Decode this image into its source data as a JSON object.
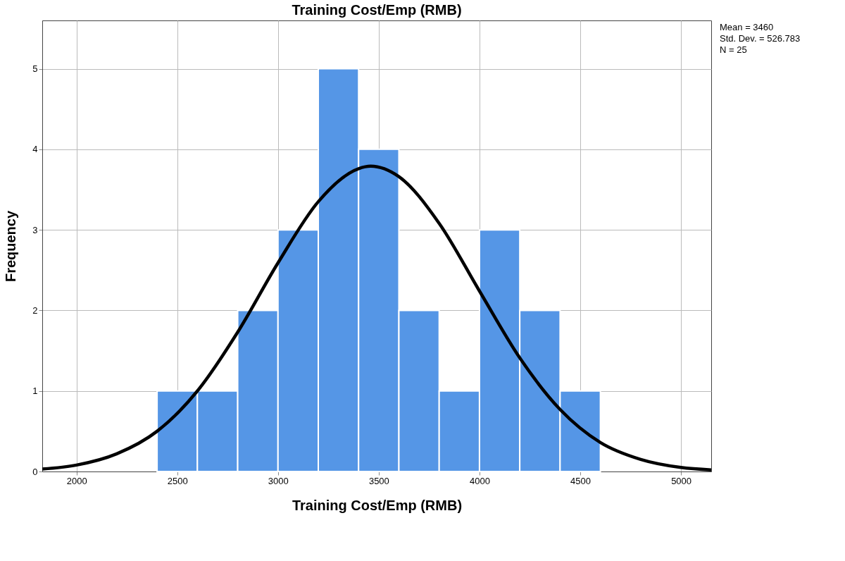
{
  "chart_data": {
    "type": "histogram",
    "title": "Training Cost/Emp (RMB)",
    "xlabel": "Training Cost/Emp (RMB)",
    "ylabel": "Frequency",
    "bins": [
      2400,
      2600,
      2800,
      3000,
      3200,
      3400,
      3600,
      3800,
      4000,
      4200,
      4400,
      4600
    ],
    "values": [
      1,
      1,
      2,
      3,
      5,
      4,
      2,
      1,
      3,
      2,
      1
    ],
    "color": "#5596e6",
    "series": [
      {
        "type": "line",
        "color": "#000000",
        "x": [
          1830,
          2000,
          2200,
          2400,
          2600,
          2800,
          3000,
          3200,
          3400,
          3460,
          3600,
          3800,
          4000,
          4200,
          4400,
          4600,
          4800,
          5000,
          5150
        ],
        "values": [
          0.03,
          0.08,
          0.22,
          0.5,
          1.0,
          1.73,
          2.59,
          3.35,
          3.76,
          3.79,
          3.66,
          3.08,
          2.24,
          1.41,
          0.77,
          0.36,
          0.15,
          0.05,
          0.02
        ]
      }
    ],
    "xlim": [
      1830,
      5150
    ],
    "xticks": [
      2000,
      2500,
      3000,
      3500,
      4000,
      4500,
      5000
    ],
    "ylim": [
      0,
      5.6
    ],
    "yticks": [
      0,
      1,
      2,
      3,
      4,
      5
    ],
    "grid": true,
    "annotations": [
      "Mean = 3460",
      "Std. Dev. = 526.783",
      "N = 25"
    ]
  }
}
